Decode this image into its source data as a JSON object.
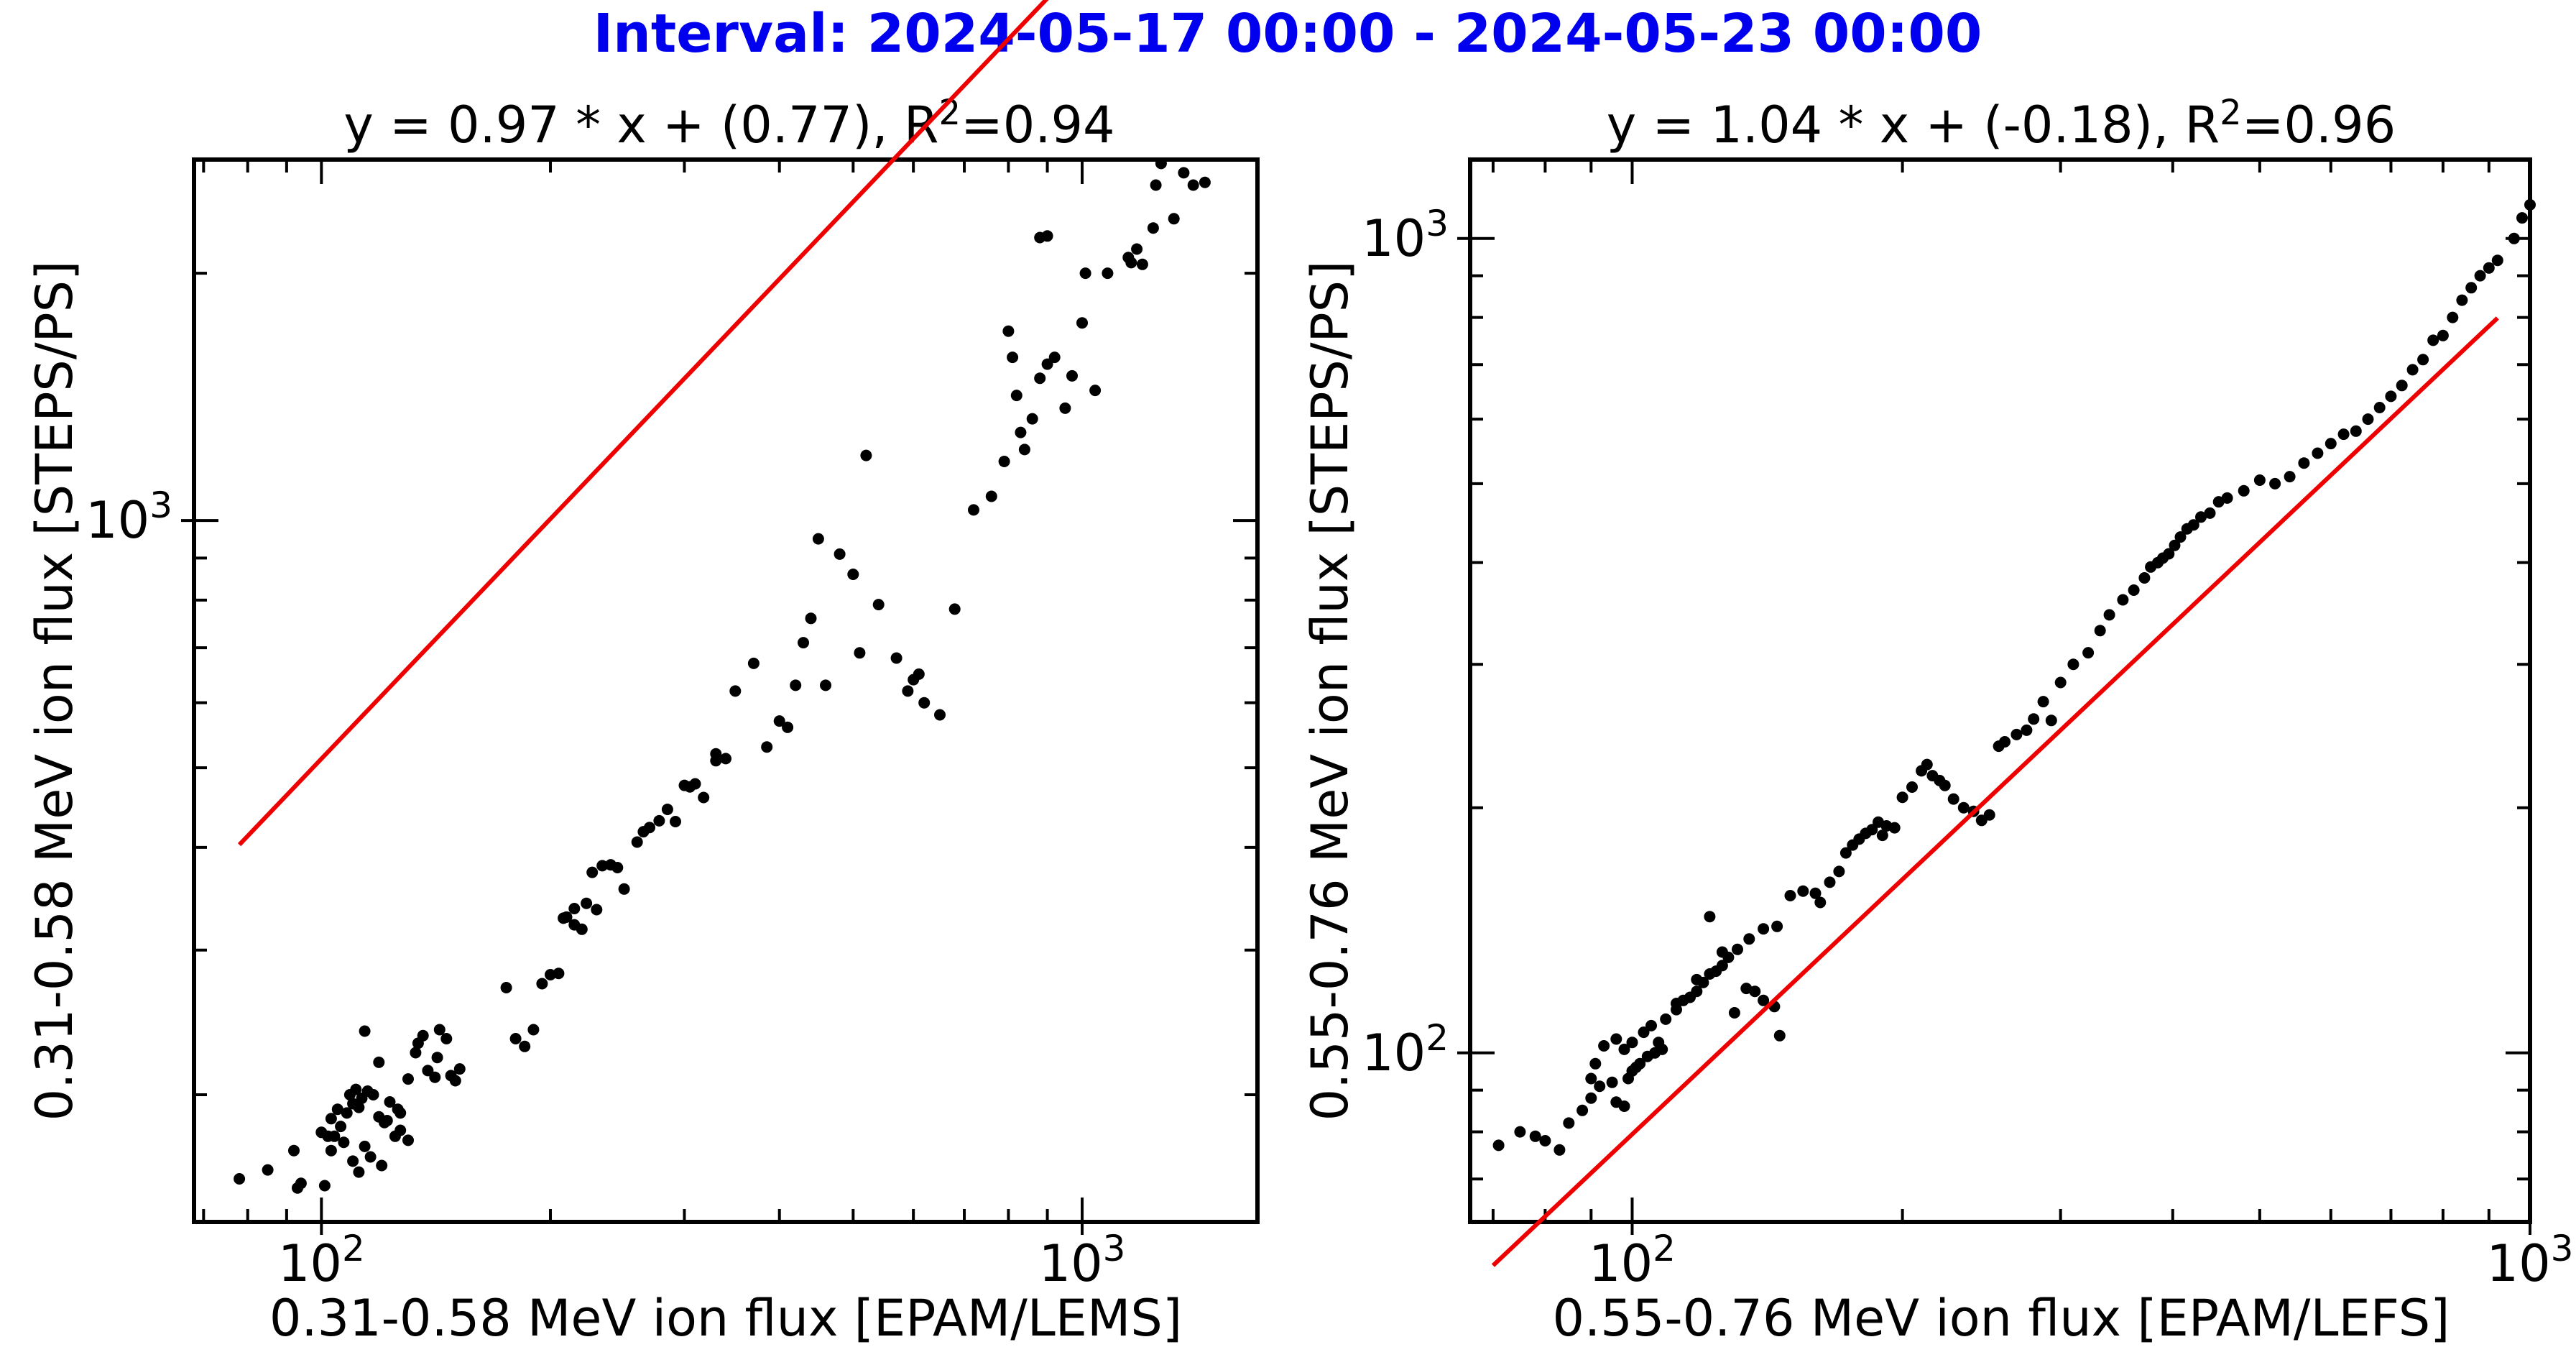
{
  "chart_data": [
    {
      "type": "scatter",
      "suptitle": "Interval: 2024-05-17 00:00 - 2024-05-23 00:00",
      "title_main": "y = 0.97 * x + (0.77), R",
      "title_sup": "2",
      "title_tail": "=0.94",
      "xlabel": "0.31-0.58 MeV ion flux [EPAM/LEMS]",
      "ylabel": "0.31-0.58 MeV ion flux [STEPS/PS]",
      "xscale": "log",
      "yscale": "log",
      "xlim": [
        68,
        1700
      ],
      "ylim": [
        140,
        2750
      ],
      "x_major_ticks": [
        {
          "value": 100,
          "base": "10",
          "exp": "2"
        },
        {
          "value": 1000,
          "base": "10",
          "exp": "3"
        }
      ],
      "y_major_ticks": [
        {
          "value": 1000,
          "base": "10",
          "exp": "3"
        }
      ],
      "fit": {
        "slope": 0.97,
        "intercept": 0.77,
        "r2": 0.94,
        "x_range": [
          78,
          1600
        ]
      },
      "points": [
        [
          78,
          158
        ],
        [
          85,
          162
        ],
        [
          92,
          171
        ],
        [
          93,
          154
        ],
        [
          94,
          156
        ],
        [
          101,
          155
        ],
        [
          103,
          171
        ],
        [
          104,
          178
        ],
        [
          107,
          175
        ],
        [
          110,
          166
        ],
        [
          112,
          161
        ],
        [
          114,
          173
        ],
        [
          116,
          168
        ],
        [
          120,
          164
        ],
        [
          125,
          178
        ],
        [
          127,
          181
        ],
        [
          130,
          176
        ],
        [
          122,
          186
        ],
        [
          126,
          192
        ],
        [
          103,
          187
        ],
        [
          105,
          192
        ],
        [
          108,
          190
        ],
        [
          110,
          195
        ],
        [
          112,
          193
        ],
        [
          100,
          180
        ],
        [
          102,
          178
        ],
        [
          106,
          183
        ],
        [
          109,
          200
        ],
        [
          111,
          203
        ],
        [
          113,
          198
        ],
        [
          115,
          202
        ],
        [
          117,
          200
        ],
        [
          119,
          188
        ],
        [
          121,
          185
        ],
        [
          123,
          196
        ],
        [
          127,
          190
        ],
        [
          130,
          209
        ],
        [
          133,
          225
        ],
        [
          134,
          231
        ],
        [
          136,
          236
        ],
        [
          138,
          214
        ],
        [
          141,
          210
        ],
        [
          142,
          222
        ],
        [
          143,
          240
        ],
        [
          146,
          234
        ],
        [
          148,
          211
        ],
        [
          150,
          208
        ],
        [
          152,
          215
        ],
        [
          114,
          239
        ],
        [
          119,
          219
        ],
        [
          175,
          270
        ],
        [
          180,
          234
        ],
        [
          185,
          229
        ],
        [
          190,
          240
        ],
        [
          195,
          273
        ],
        [
          200,
          280
        ],
        [
          205,
          281
        ],
        [
          210,
          329
        ],
        [
          215,
          322
        ],
        [
          220,
          318
        ],
        [
          223,
          342
        ],
        [
          227,
          373
        ],
        [
          230,
          336
        ],
        [
          208,
          328
        ],
        [
          215,
          337
        ],
        [
          234,
          380
        ],
        [
          240,
          381
        ],
        [
          245,
          378
        ],
        [
          250,
          356
        ],
        [
          260,
          406
        ],
        [
          265,
          418
        ],
        [
          270,
          423
        ],
        [
          278,
          431
        ],
        [
          285,
          445
        ],
        [
          292,
          430
        ],
        [
          300,
          476
        ],
        [
          305,
          474
        ],
        [
          310,
          478
        ],
        [
          318,
          460
        ],
        [
          330,
          510
        ],
        [
          340,
          513
        ],
        [
          330,
          520
        ],
        [
          350,
          620
        ],
        [
          370,
          670
        ],
        [
          385,
          530
        ],
        [
          400,
          570
        ],
        [
          410,
          560
        ],
        [
          420,
          630
        ],
        [
          430,
          710
        ],
        [
          440,
          760
        ],
        [
          450,
          950
        ],
        [
          460,
          630
        ],
        [
          480,
          910
        ],
        [
          500,
          860
        ],
        [
          510,
          690
        ],
        [
          520,
          1200
        ],
        [
          540,
          790
        ],
        [
          570,
          680
        ],
        [
          590,
          620
        ],
        [
          600,
          640
        ],
        [
          610,
          650
        ],
        [
          620,
          600
        ],
        [
          650,
          580
        ],
        [
          680,
          780
        ],
        [
          720,
          1030
        ],
        [
          760,
          1070
        ],
        [
          790,
          1180
        ],
        [
          800,
          1700
        ],
        [
          810,
          1580
        ],
        [
          820,
          1420
        ],
        [
          830,
          1280
        ],
        [
          840,
          1220
        ],
        [
          860,
          1330
        ],
        [
          880,
          1490
        ],
        [
          900,
          1550
        ],
        [
          920,
          1580
        ],
        [
          950,
          1370
        ],
        [
          970,
          1500
        ],
        [
          1000,
          1740
        ],
        [
          1010,
          2000
        ],
        [
          1040,
          1440
        ],
        [
          1080,
          2000
        ],
        [
          1150,
          2090
        ],
        [
          1160,
          2060
        ],
        [
          1180,
          2140
        ],
        [
          1250,
          2560
        ],
        [
          1270,
          2720
        ],
        [
          1320,
          2330
        ],
        [
          1360,
          2650
        ],
        [
          1400,
          2560
        ],
        [
          1450,
          2580
        ],
        [
          1200,
          2050
        ],
        [
          1240,
          2270
        ],
        [
          900,
          2220
        ],
        [
          880,
          2210
        ]
      ]
    },
    {
      "type": "scatter",
      "title_main": "y = 1.04 * x + (-0.18), R",
      "title_sup": "2",
      "title_tail": "=0.96",
      "xlabel": "0.55-0.76 MeV ion flux [EPAM/LEFS]",
      "ylabel": "0.55-0.76 MeV ion flux [STEPS/PS]",
      "xscale": "log",
      "yscale": "log",
      "xlim": [
        66,
        1000
      ],
      "ylim": [
        62,
        1250
      ],
      "x_major_ticks": [
        {
          "value": 100,
          "base": "10",
          "exp": "2"
        },
        {
          "value": 1000,
          "base": "10",
          "exp": "3"
        }
      ],
      "y_major_ticks": [
        {
          "value": 100,
          "base": "10",
          "exp": "2"
        },
        {
          "value": 1000,
          "base": "10",
          "exp": "3"
        }
      ],
      "fit": {
        "slope": 1.04,
        "intercept": -0.18,
        "r2": 0.96,
        "x_range": [
          70,
          920
        ]
      },
      "points": [
        [
          71,
          77
        ],
        [
          75,
          80
        ],
        [
          78,
          79
        ],
        [
          80,
          78
        ],
        [
          83,
          76
        ],
        [
          85,
          82
        ],
        [
          88,
          85
        ],
        [
          90,
          88
        ],
        [
          92,
          91
        ],
        [
          95,
          92
        ],
        [
          96,
          87
        ],
        [
          98,
          86
        ],
        [
          99,
          93
        ],
        [
          100,
          95
        ],
        [
          101,
          96
        ],
        [
          102,
          97
        ],
        [
          104,
          99
        ],
        [
          106,
          100
        ],
        [
          108,
          101
        ],
        [
          90,
          93
        ],
        [
          91,
          97
        ],
        [
          93,
          102
        ],
        [
          96,
          104
        ],
        [
          98,
          101
        ],
        [
          100,
          103
        ],
        [
          103,
          106
        ],
        [
          105,
          108
        ],
        [
          107,
          103
        ],
        [
          109,
          110
        ],
        [
          112,
          113
        ],
        [
          114,
          116
        ],
        [
          116,
          117
        ],
        [
          118,
          119
        ],
        [
          120,
          122
        ],
        [
          122,
          125
        ],
        [
          124,
          126
        ],
        [
          126,
          128
        ],
        [
          128,
          131
        ],
        [
          131,
          134
        ],
        [
          134,
          120
        ],
        [
          137,
          119
        ],
        [
          140,
          116
        ],
        [
          144,
          114
        ],
        [
          146,
          105
        ],
        [
          130,
          112
        ],
        [
          112,
          115
        ],
        [
          118,
          123
        ],
        [
          122,
          147
        ],
        [
          126,
          133
        ],
        [
          135,
          138
        ],
        [
          140,
          142
        ],
        [
          145,
          143
        ],
        [
          150,
          156
        ],
        [
          155,
          158
        ],
        [
          160,
          157
        ],
        [
          162,
          153
        ],
        [
          166,
          162
        ],
        [
          170,
          167
        ],
        [
          173,
          176
        ],
        [
          176,
          180
        ],
        [
          179,
          183
        ],
        [
          182,
          186
        ],
        [
          185,
          188
        ],
        [
          188,
          192
        ],
        [
          190,
          185
        ],
        [
          192,
          190
        ],
        [
          196,
          189
        ],
        [
          200,
          206
        ],
        [
          205,
          212
        ],
        [
          210,
          222
        ],
        [
          213,
          226
        ],
        [
          216,
          219
        ],
        [
          220,
          216
        ],
        [
          223,
          213
        ],
        [
          228,
          205
        ],
        [
          234,
          200
        ],
        [
          240,
          198
        ],
        [
          245,
          193
        ],
        [
          250,
          196
        ],
        [
          256,
          238
        ],
        [
          260,
          241
        ],
        [
          268,
          246
        ],
        [
          275,
          249
        ],
        [
          280,
          257
        ],
        [
          287,
          270
        ],
        [
          293,
          256
        ],
        [
          300,
          285
        ],
        [
          310,
          300
        ],
        [
          322,
          310
        ],
        [
          332,
          330
        ],
        [
          340,
          345
        ],
        [
          352,
          360
        ],
        [
          362,
          370
        ],
        [
          372,
          383
        ],
        [
          378,
          395
        ],
        [
          385,
          400
        ],
        [
          390,
          405
        ],
        [
          396,
          410
        ],
        [
          402,
          420
        ],
        [
          408,
          430
        ],
        [
          415,
          440
        ],
        [
          422,
          445
        ],
        [
          430,
          455
        ],
        [
          440,
          460
        ],
        [
          450,
          475
        ],
        [
          460,
          480
        ],
        [
          480,
          490
        ],
        [
          500,
          505
        ],
        [
          520,
          500
        ],
        [
          540,
          510
        ],
        [
          560,
          530
        ],
        [
          580,
          545
        ],
        [
          600,
          560
        ],
        [
          620,
          575
        ],
        [
          640,
          580
        ],
        [
          660,
          600
        ],
        [
          680,
          620
        ],
        [
          700,
          640
        ],
        [
          720,
          660
        ],
        [
          740,
          690
        ],
        [
          760,
          710
        ],
        [
          780,
          750
        ],
        [
          800,
          760
        ],
        [
          820,
          800
        ],
        [
          840,
          840
        ],
        [
          860,
          870
        ],
        [
          880,
          900
        ],
        [
          900,
          920
        ],
        [
          920,
          940
        ],
        [
          960,
          1000
        ],
        [
          980,
          1060
        ],
        [
          1000,
          1100
        ],
        [
          1020,
          1120
        ]
      ]
    }
  ]
}
